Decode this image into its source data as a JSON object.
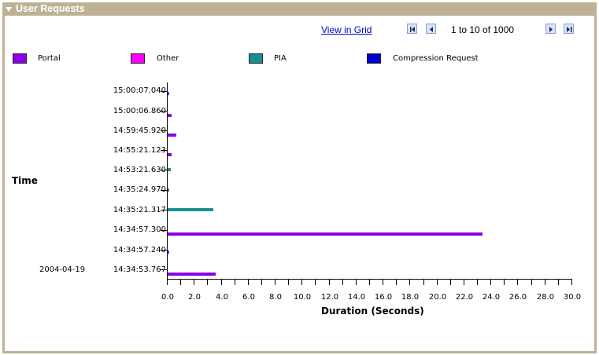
{
  "panel": {
    "title": "User Requests",
    "collapse_icon": "triangle-down-icon"
  },
  "toolbar": {
    "view_in_grid": "View in Grid",
    "pager_text": "1 to 10 of 1000",
    "first_icon": "first-page-icon",
    "prev_icon": "previous-page-icon",
    "next_icon": "next-page-icon",
    "last_icon": "last-page-icon"
  },
  "colors": {
    "header_bg": "#bdb394",
    "portal": "#8b00e6",
    "other": "#ff00ff",
    "pia": "#1a8f8f",
    "compression": "#0000cc",
    "link": "#0000cc"
  },
  "chart_data": {
    "type": "bar",
    "orientation": "horizontal",
    "title": "User Requests",
    "xlabel": "Duration (Seconds)",
    "ylabel": "Time",
    "xlim": [
      0,
      30
    ],
    "x_ticks": [
      "0.0",
      "2.0",
      "4.0",
      "6.0",
      "8.0",
      "10.0",
      "12.0",
      "14.0",
      "16.0",
      "18.0",
      "20.0",
      "22.0",
      "24.0",
      "26.0",
      "28.0",
      "30.0"
    ],
    "date_label": "2004-04-19",
    "legend": [
      {
        "name": "Portal",
        "color": "#8b00e6"
      },
      {
        "name": "Other",
        "color": "#ff00ff"
      },
      {
        "name": "PIA",
        "color": "#1a8f8f"
      },
      {
        "name": "Compression Request",
        "color": "#0000cc"
      }
    ],
    "categories": [
      "15:00:07.040",
      "15:00:06.860",
      "14:59:45.920",
      "14:55:21.123",
      "14:53:21.630",
      "14:35:24.970",
      "14:35:21.317",
      "14:34:57.300",
      "14:34:57.240",
      "14:34:53.767"
    ],
    "bars": [
      {
        "time": "15:00:07.040",
        "series": "Portal",
        "value": 0.1
      },
      {
        "time": "15:00:06.860",
        "series": "Portal",
        "value": 0.3
      },
      {
        "time": "14:59:45.920",
        "series": "Portal",
        "value": 0.7
      },
      {
        "time": "14:55:21.123",
        "series": "Portal",
        "value": 0.3
      },
      {
        "time": "14:53:21.630",
        "series": "PIA",
        "value": 0.3
      },
      {
        "time": "14:35:24.970",
        "series": "PIA",
        "value": 0.15
      },
      {
        "time": "14:35:21.317",
        "series": "PIA",
        "value": 3.4
      },
      {
        "time": "14:34:57.300",
        "series": "Portal",
        "value": 23.4
      },
      {
        "time": "14:34:57.240",
        "series": "Portal",
        "value": 0.1
      },
      {
        "time": "14:34:53.767",
        "series": "Portal",
        "value": 3.6
      }
    ],
    "grid": false,
    "legend_position": "top"
  }
}
